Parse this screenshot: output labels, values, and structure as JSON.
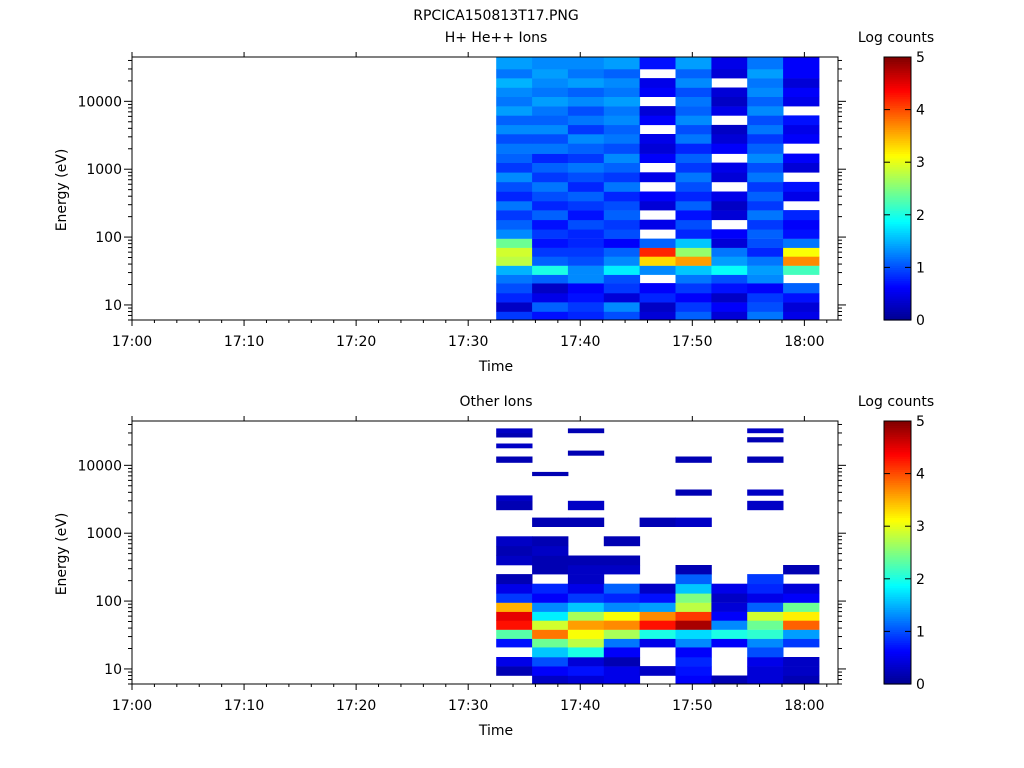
{
  "figure": {
    "title": "RPCICA150813T17.PNG"
  },
  "palette": {
    "background": "#ffffff",
    "axes": "#000000",
    "colormap": [
      "#00008f",
      "#0000ff",
      "#0080ff",
      "#00ffff",
      "#80ff80",
      "#ffff00",
      "#ff8000",
      "#ff0000",
      "#800000"
    ]
  },
  "chart_data": [
    {
      "type": "heatmap",
      "title": "H+ He++ Ions",
      "xlabel": "Time",
      "ylabel": "Energy (eV)",
      "x_ticks": [
        "17:00",
        "17:10",
        "17:20",
        "17:30",
        "17:40",
        "17:50",
        "18:00"
      ],
      "x_range_minutes": [
        0,
        63
      ],
      "y_scale": "log",
      "y_ticks": [
        "10",
        "100",
        "1000",
        "10000"
      ],
      "y_range": [
        6,
        45000
      ],
      "colorbar": {
        "label": "Log counts",
        "ticks": [
          "0",
          "1",
          "2",
          "3",
          "4",
          "5"
        ],
        "range": [
          0,
          5
        ]
      },
      "grid": false,
      "bins_start_minutes": [
        32.5,
        35.7,
        38.9,
        42.1,
        45.3,
        48.5,
        51.7,
        54.9,
        58.1
      ],
      "bins_width_minutes": 3.2,
      "energy_bins": [
        {
          "lo": 6,
          "hi": 8,
          "v": [
            0.9,
            0.7,
            0.8,
            1.0,
            0.4,
            1.1,
            0.4,
            1.2,
            0.5
          ]
        },
        {
          "lo": 8,
          "hi": 11,
          "v": [
            0.3,
            1.1,
            0.9,
            1.3,
            0.3,
            0.9,
            0.6,
            1.0,
            0.4
          ]
        },
        {
          "lo": 11,
          "hi": 15,
          "v": [
            0.8,
            0.5,
            0.7,
            0.4,
            0.8,
            0.6,
            0.3,
            0.9,
            0.7
          ]
        },
        {
          "lo": 15,
          "hi": 21,
          "v": [
            1.0,
            0.3,
            0.6,
            0.9,
            0.6,
            0.9,
            0.7,
            0.6,
            1.1
          ]
        },
        {
          "lo": 21,
          "hi": 28,
          "v": [
            1.2,
            1.1,
            1.3,
            1.0,
            null,
            1.2,
            1.0,
            1.3,
            null
          ]
        },
        {
          "lo": 28,
          "hi": 38,
          "v": [
            1.5,
            2.0,
            1.3,
            1.8,
            1.3,
            1.6,
            1.9,
            1.4,
            2.2
          ]
        },
        {
          "lo": 38,
          "hi": 52,
          "v": [
            2.8,
            1.1,
            1.0,
            1.3,
            3.3,
            3.6,
            1.4,
            1.2,
            3.7
          ]
        },
        {
          "lo": 52,
          "hi": 70,
          "v": [
            2.9,
            0.9,
            0.9,
            1.1,
            4.2,
            2.6,
            1.2,
            0.8,
            3.1
          ]
        },
        {
          "lo": 70,
          "hi": 95,
          "v": [
            2.4,
            0.7,
            0.8,
            0.6,
            1.1,
            1.6,
            0.4,
            1.0,
            1.2
          ]
        },
        {
          "lo": 95,
          "hi": 130,
          "v": [
            1.3,
            0.9,
            0.8,
            1.0,
            null,
            0.8,
            0.6,
            1.1,
            0.7
          ]
        },
        {
          "lo": 130,
          "hi": 180,
          "v": [
            1.1,
            0.7,
            1.0,
            0.9,
            0.5,
            1.0,
            null,
            0.9,
            0.6
          ]
        },
        {
          "lo": 180,
          "hi": 250,
          "v": [
            0.9,
            1.1,
            0.7,
            1.1,
            null,
            0.7,
            0.4,
            1.2,
            0.8
          ]
        },
        {
          "lo": 250,
          "hi": 340,
          "v": [
            1.2,
            0.8,
            0.9,
            1.0,
            0.4,
            1.1,
            0.3,
            0.9,
            null
          ]
        },
        {
          "lo": 340,
          "hi": 470,
          "v": [
            0.8,
            1.0,
            1.1,
            0.8,
            0.6,
            0.8,
            0.5,
            1.1,
            0.5
          ]
        },
        {
          "lo": 470,
          "hi": 650,
          "v": [
            1.0,
            1.2,
            0.8,
            1.2,
            null,
            1.0,
            null,
            0.9,
            0.7
          ]
        },
        {
          "lo": 650,
          "hi": 900,
          "v": [
            1.3,
            0.9,
            1.0,
            0.9,
            0.5,
            1.2,
            0.4,
            1.2,
            null
          ]
        },
        {
          "lo": 900,
          "hi": 1250,
          "v": [
            0.9,
            1.1,
            1.2,
            1.1,
            null,
            0.9,
            0.5,
            1.0,
            0.4
          ]
        },
        {
          "lo": 1250,
          "hi": 1700,
          "v": [
            1.1,
            0.8,
            0.9,
            1.3,
            0.6,
            1.1,
            null,
            1.3,
            0.6
          ]
        },
        {
          "lo": 1700,
          "hi": 2400,
          "v": [
            1.2,
            1.2,
            1.1,
            1.0,
            0.4,
            0.8,
            0.6,
            1.1,
            null
          ]
        },
        {
          "lo": 2400,
          "hi": 3300,
          "v": [
            1.0,
            1.0,
            1.3,
            1.2,
            0.5,
            1.2,
            0.4,
            0.9,
            0.6
          ]
        },
        {
          "lo": 3300,
          "hi": 4500,
          "v": [
            1.3,
            1.3,
            0.9,
            1.1,
            null,
            1.0,
            0.3,
            1.2,
            0.5
          ]
        },
        {
          "lo": 4500,
          "hi": 6200,
          "v": [
            1.1,
            1.1,
            1.2,
            1.3,
            0.6,
            1.3,
            null,
            1.0,
            0.7
          ]
        },
        {
          "lo": 6200,
          "hi": 8500,
          "v": [
            1.4,
            1.2,
            1.0,
            1.2,
            0.4,
            1.1,
            0.5,
            1.3,
            null
          ]
        },
        {
          "lo": 8500,
          "hi": 11700,
          "v": [
            1.2,
            1.4,
            1.3,
            1.4,
            null,
            1.2,
            0.3,
            1.1,
            0.5
          ]
        },
        {
          "lo": 11700,
          "hi": 16000,
          "v": [
            1.3,
            1.2,
            1.1,
            1.2,
            0.6,
            1.0,
            0.4,
            1.3,
            0.6
          ]
        },
        {
          "lo": 16000,
          "hi": 22000,
          "v": [
            1.5,
            1.3,
            1.4,
            1.3,
            0.5,
            1.3,
            null,
            1.2,
            0.4
          ]
        },
        {
          "lo": 22000,
          "hi": 30000,
          "v": [
            1.2,
            1.4,
            1.2,
            1.1,
            null,
            1.1,
            0.4,
            1.4,
            0.6
          ]
        },
        {
          "lo": 30000,
          "hi": 45000,
          "v": [
            1.4,
            1.3,
            1.3,
            1.4,
            0.7,
            1.4,
            0.5,
            1.2,
            0.6
          ]
        }
      ]
    },
    {
      "type": "heatmap",
      "title": "Other Ions",
      "xlabel": "Time",
      "ylabel": "Energy (eV)",
      "x_ticks": [
        "17:00",
        "17:10",
        "17:20",
        "17:30",
        "17:40",
        "17:50",
        "18:00"
      ],
      "x_range_minutes": [
        0,
        63
      ],
      "y_scale": "log",
      "y_ticks": [
        "10",
        "100",
        "1000",
        "10000"
      ],
      "y_range": [
        6,
        45000
      ],
      "colorbar": {
        "label": "Log counts",
        "ticks": [
          "0",
          "1",
          "2",
          "3",
          "4",
          "5"
        ],
        "range": [
          0,
          5
        ]
      },
      "grid": false,
      "bins_start_minutes": [
        32.5,
        35.7,
        38.9,
        42.1,
        45.3,
        48.5,
        51.7,
        54.9,
        58.1
      ],
      "bins_width_minutes": 3.2,
      "energy_bins": [
        {
          "lo": 6,
          "hi": 8,
          "v": [
            null,
            0.3,
            0.4,
            0.5,
            null,
            0.6,
            0.2,
            0.4,
            0.2
          ]
        },
        {
          "lo": 8,
          "hi": 11,
          "v": [
            0.2,
            0.6,
            0.7,
            0.5,
            0.3,
            0.7,
            null,
            0.4,
            0.3
          ]
        },
        {
          "lo": 11,
          "hi": 15,
          "v": [
            0.5,
            1.0,
            0.4,
            0.2,
            null,
            0.8,
            null,
            0.5,
            0.3
          ]
        },
        {
          "lo": 15,
          "hi": 21,
          "v": [
            null,
            1.6,
            2.0,
            0.6,
            null,
            0.6,
            null,
            1.0,
            null
          ]
        },
        {
          "lo": 21,
          "hi": 28,
          "v": [
            0.7,
            2.4,
            2.8,
            1.2,
            0.5,
            1.3,
            0.6,
            1.3,
            0.9
          ]
        },
        {
          "lo": 28,
          "hi": 38,
          "v": [
            2.3,
            3.8,
            3.1,
            2.7,
            2.0,
            1.7,
            2.0,
            2.1,
            1.4
          ]
        },
        {
          "lo": 38,
          "hi": 52,
          "v": [
            4.3,
            2.9,
            3.6,
            3.7,
            4.3,
            4.8,
            1.3,
            2.4,
            3.9
          ]
        },
        {
          "lo": 52,
          "hi": 70,
          "v": [
            4.5,
            1.8,
            2.7,
            3.1,
            3.7,
            4.1,
            0.6,
            2.9,
            3.2
          ]
        },
        {
          "lo": 70,
          "hi": 95,
          "v": [
            3.5,
            1.3,
            1.6,
            1.3,
            1.4,
            2.8,
            0.4,
            1.1,
            2.4
          ]
        },
        {
          "lo": 95,
          "hi": 130,
          "v": [
            0.9,
            0.6,
            0.9,
            0.8,
            0.7,
            2.5,
            0.3,
            0.5,
            0.6
          ]
        },
        {
          "lo": 130,
          "hi": 180,
          "v": [
            0.5,
            0.8,
            0.5,
            1.1,
            0.3,
            1.6,
            0.5,
            0.8,
            0.4
          ]
        },
        {
          "lo": 180,
          "hi": 250,
          "v": [
            0.2,
            null,
            0.3,
            null,
            null,
            1.1,
            null,
            0.9,
            null
          ]
        },
        {
          "lo": 250,
          "hi": 340,
          "v": [
            null,
            0.2,
            0.3,
            0.3,
            null,
            0.2,
            null,
            null,
            0.2
          ]
        },
        {
          "lo": 340,
          "hi": 470,
          "v": [
            0.3,
            0.2,
            0.2,
            0.2,
            null,
            null,
            null,
            null,
            null
          ]
        },
        {
          "lo": 470,
          "hi": 650,
          "v": [
            0.2,
            0.3,
            null,
            null,
            null,
            null,
            null,
            null,
            null
          ]
        },
        {
          "lo": 650,
          "hi": 900,
          "v": [
            0.3,
            0.2,
            null,
            0.2,
            null,
            null,
            null,
            null,
            null
          ]
        },
        {
          "lo": 1250,
          "hi": 1700,
          "v": [
            null,
            0.2,
            0.2,
            null,
            0.2,
            0.3,
            null,
            null,
            null
          ]
        },
        {
          "lo": 2200,
          "hi": 3000,
          "v": [
            0.2,
            null,
            0.3,
            null,
            null,
            null,
            null,
            0.3,
            null
          ]
        },
        {
          "lo": 3000,
          "hi": 3600,
          "v": [
            0.3,
            null,
            null,
            null,
            null,
            null,
            null,
            null,
            null
          ]
        },
        {
          "lo": 3600,
          "hi": 4400,
          "v": [
            null,
            null,
            null,
            null,
            null,
            0.2,
            null,
            0.3,
            null
          ]
        },
        {
          "lo": 7000,
          "hi": 8000,
          "v": [
            null,
            0.2,
            null,
            null,
            null,
            null,
            null,
            null,
            null
          ]
        },
        {
          "lo": 11000,
          "hi": 13500,
          "v": [
            0.2,
            null,
            null,
            null,
            null,
            0.2,
            null,
            0.2,
            null
          ]
        },
        {
          "lo": 14000,
          "hi": 16500,
          "v": [
            null,
            null,
            0.2,
            null,
            null,
            null,
            null,
            null,
            null
          ]
        },
        {
          "lo": 18000,
          "hi": 21000,
          "v": [
            0.3,
            null,
            null,
            null,
            null,
            null,
            null,
            null,
            null
          ]
        },
        {
          "lo": 22000,
          "hi": 26000,
          "v": [
            null,
            null,
            null,
            null,
            null,
            null,
            null,
            0.2,
            null
          ]
        },
        {
          "lo": 26000,
          "hi": 30000,
          "v": [
            0.2,
            null,
            null,
            null,
            null,
            null,
            null,
            null,
            null
          ]
        },
        {
          "lo": 30000,
          "hi": 35000,
          "v": [
            0.3,
            null,
            0.2,
            null,
            null,
            null,
            null,
            0.3,
            null
          ]
        }
      ]
    }
  ]
}
